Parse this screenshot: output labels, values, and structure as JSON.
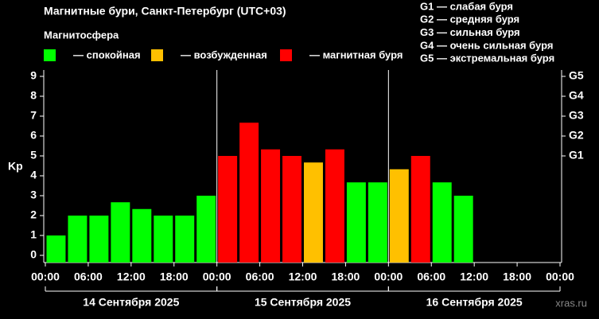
{
  "chart_data": {
    "type": "bar",
    "title": "Магнитные бури, Санкт-Петербург (UTC+03)",
    "subtitle": "Магнитосфера",
    "legend": [
      {
        "label": "— спокойная",
        "color": "#00ff00"
      },
      {
        "label": "— возбужденная",
        "color": "#ffc000"
      },
      {
        "label": "— магнитная буря",
        "color": "#ff0000"
      }
    ],
    "storm_levels": [
      "G1 — слабая буря",
      "G2 — средняя буря",
      "G3 — сильная буря",
      "G4 — очень сильная буря",
      "G5 — экстремальная буря"
    ],
    "ylabel": "Kp",
    "x": [
      0,
      3,
      6,
      9,
      12,
      15,
      18,
      21,
      24,
      27,
      30,
      33,
      36,
      39,
      42,
      45,
      48,
      51,
      54,
      57,
      60,
      63,
      66,
      69
    ],
    "values": [
      1,
      2,
      2,
      2.67,
      2.33,
      2,
      2,
      3,
      5,
      6.67,
      5.33,
      5,
      4.67,
      5.33,
      3.67,
      3.67,
      4.33,
      5,
      3.67,
      3,
      null,
      null,
      null,
      null
    ],
    "colors": [
      "#00ff00",
      "#00ff00",
      "#00ff00",
      "#00ff00",
      "#00ff00",
      "#00ff00",
      "#00ff00",
      "#00ff00",
      "#ff0000",
      "#ff0000",
      "#ff0000",
      "#ff0000",
      "#ffc000",
      "#ff0000",
      "#00ff00",
      "#00ff00",
      "#ffc000",
      "#ff0000",
      "#00ff00",
      "#00ff00",
      null,
      null,
      null,
      null
    ],
    "bar_hours": 3,
    "xlim": [
      0,
      72
    ],
    "xticks": [
      {
        "value": 0,
        "label": "00:00"
      },
      {
        "value": 6,
        "label": "06:00"
      },
      {
        "value": 12,
        "label": "12:00"
      },
      {
        "value": 18,
        "label": "18:00"
      },
      {
        "value": 24,
        "label": "00:00"
      },
      {
        "value": 30,
        "label": "06:00"
      },
      {
        "value": 36,
        "label": "12:00"
      },
      {
        "value": 42,
        "label": "18:00"
      },
      {
        "value": 48,
        "label": "00:00"
      },
      {
        "value": 54,
        "label": "06:00"
      },
      {
        "value": 60,
        "label": "12:00"
      },
      {
        "value": 66,
        "label": "18:00"
      },
      {
        "value": 72,
        "label": "00:00"
      }
    ],
    "days": [
      "14 Сентября 2025",
      "15 Сентября 2025",
      "16 Сентября 2025"
    ],
    "ylim": [
      -0.36,
      9.32
    ],
    "yticks": [
      0,
      1,
      2,
      3,
      4,
      5,
      6,
      7,
      8,
      9
    ],
    "y2lim": [
      -0.36,
      9.32
    ],
    "y2ticks": [
      {
        "value": 5,
        "label": "G1"
      },
      {
        "value": 6,
        "label": "G2"
      },
      {
        "value": 7,
        "label": "G3"
      },
      {
        "value": 8,
        "label": "G4"
      },
      {
        "value": 9,
        "label": "G5"
      }
    ],
    "watermark": "xras.ru"
  }
}
